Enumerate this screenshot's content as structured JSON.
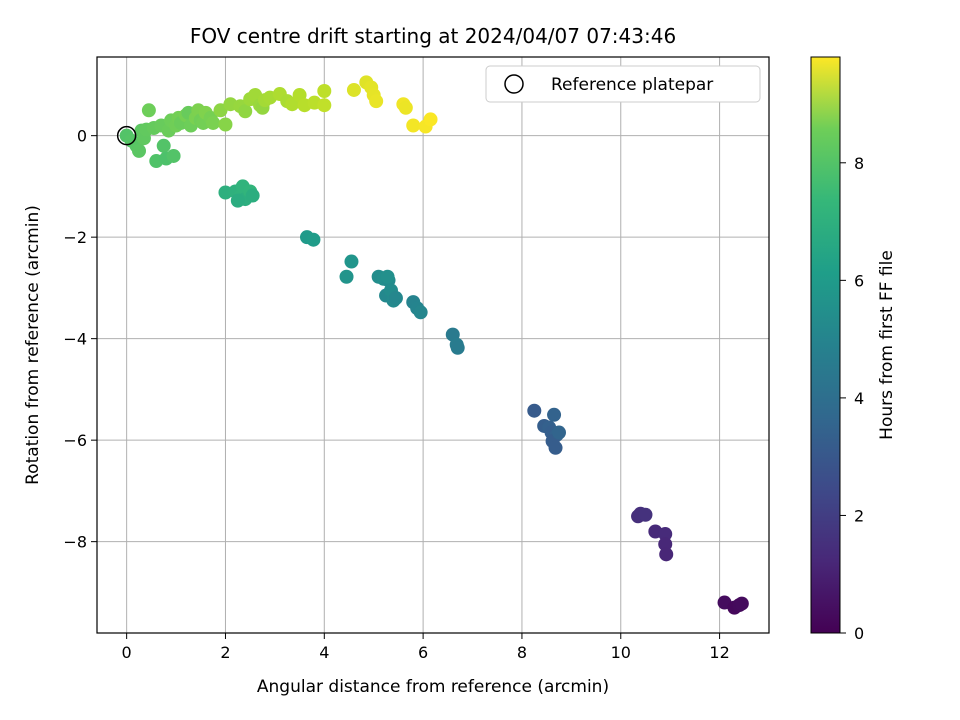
{
  "chart_data": {
    "type": "scatter",
    "title": "FOV centre drift starting at 2024/04/07 07:43:46",
    "xlabel": "Angular distance from reference (arcmin)",
    "ylabel": "Rotation from reference (arcmin)",
    "xlim": [
      -0.6,
      13.0
    ],
    "ylim": [
      -9.8,
      1.55
    ],
    "xticks": [
      0,
      2,
      4,
      6,
      8,
      10,
      12
    ],
    "yticks": [
      -8,
      -6,
      -4,
      -2,
      0
    ],
    "grid": true,
    "legend": {
      "position": "top-right",
      "entries": [
        "Reference platepar"
      ]
    },
    "reference": {
      "x": 0,
      "y": 0
    },
    "colorbar": {
      "label": "Hours from first FF file",
      "min": 0,
      "max": 9.8,
      "ticks": [
        0,
        2,
        4,
        6,
        8
      ],
      "colormap": "viridis"
    },
    "series": [
      {
        "points": [
          [
            12.1,
            -9.2,
            0.3
          ],
          [
            12.3,
            -9.3,
            0.2
          ],
          [
            12.4,
            -9.25,
            0.25
          ],
          [
            12.45,
            -9.22,
            0.28
          ],
          [
            10.35,
            -7.5,
            1.3
          ],
          [
            10.4,
            -7.45,
            1.35
          ],
          [
            10.5,
            -7.47,
            1.4
          ],
          [
            10.7,
            -7.8,
            1.15
          ],
          [
            10.9,
            -7.85,
            1.2
          ],
          [
            10.9,
            -8.05,
            1.1
          ],
          [
            10.92,
            -8.25,
            1.05
          ],
          [
            8.25,
            -5.42,
            2.8
          ],
          [
            8.45,
            -5.72,
            2.9
          ],
          [
            8.55,
            -5.75,
            3.0
          ],
          [
            8.6,
            -5.85,
            2.95
          ],
          [
            8.7,
            -5.9,
            3.05
          ],
          [
            8.62,
            -6.02,
            2.85
          ],
          [
            8.68,
            -6.15,
            2.85
          ],
          [
            8.65,
            -5.5,
            3.1
          ],
          [
            8.75,
            -5.85,
            3.15
          ],
          [
            6.6,
            -3.92,
            4.0
          ],
          [
            6.68,
            -4.12,
            4.1
          ],
          [
            6.7,
            -4.18,
            4.05
          ],
          [
            5.8,
            -3.28,
            4.4
          ],
          [
            5.88,
            -3.4,
            4.45
          ],
          [
            5.95,
            -3.48,
            4.5
          ],
          [
            5.1,
            -2.78,
            4.8
          ],
          [
            5.2,
            -2.82,
            4.85
          ],
          [
            5.3,
            -2.85,
            4.7
          ],
          [
            5.25,
            -3.15,
            4.6
          ],
          [
            5.35,
            -3.05,
            4.75
          ],
          [
            5.4,
            -3.25,
            4.65
          ],
          [
            5.45,
            -3.2,
            4.55
          ],
          [
            5.28,
            -2.78,
            4.9
          ],
          [
            4.45,
            -2.78,
            5.05
          ],
          [
            4.55,
            -2.48,
            5.1
          ],
          [
            3.65,
            -2.0,
            5.3
          ],
          [
            3.78,
            -2.05,
            5.35
          ],
          [
            2.0,
            -1.12,
            6.2
          ],
          [
            2.2,
            -1.1,
            6.25
          ],
          [
            2.3,
            -1.2,
            6.3
          ],
          [
            2.35,
            -1.0,
            6.35
          ],
          [
            2.4,
            -1.25,
            6.15
          ],
          [
            2.5,
            -1.1,
            6.4
          ],
          [
            2.55,
            -1.18,
            6.1
          ],
          [
            2.25,
            -1.28,
            6.05
          ],
          [
            0.0,
            0.0,
            7.1
          ],
          [
            0.1,
            -0.1,
            7.15
          ],
          [
            0.2,
            -0.2,
            7.2
          ],
          [
            0.25,
            -0.3,
            7.25
          ],
          [
            0.3,
            0.1,
            7.3
          ],
          [
            0.35,
            -0.05,
            7.35
          ],
          [
            0.4,
            0.12,
            7.4
          ],
          [
            0.45,
            0.5,
            7.6
          ],
          [
            0.55,
            0.15,
            7.45
          ],
          [
            0.6,
            -0.5,
            7.05
          ],
          [
            0.7,
            0.2,
            7.5
          ],
          [
            0.75,
            -0.2,
            7.1
          ],
          [
            0.8,
            -0.45,
            7.0
          ],
          [
            0.85,
            0.1,
            7.55
          ],
          [
            0.9,
            0.3,
            7.6
          ],
          [
            0.95,
            -0.4,
            7.1
          ],
          [
            1.0,
            0.2,
            7.65
          ],
          [
            1.05,
            0.35,
            7.7
          ],
          [
            1.1,
            0.25,
            7.55
          ],
          [
            1.2,
            0.4,
            7.75
          ],
          [
            1.25,
            0.45,
            7.5
          ],
          [
            1.3,
            0.2,
            7.6
          ],
          [
            1.4,
            0.35,
            7.8
          ],
          [
            1.45,
            0.5,
            7.85
          ],
          [
            1.5,
            0.3,
            7.65
          ],
          [
            1.55,
            0.25,
            7.7
          ],
          [
            1.6,
            0.45,
            7.9
          ],
          [
            1.7,
            0.35,
            7.75
          ],
          [
            1.75,
            0.25,
            7.8
          ],
          [
            1.9,
            0.5,
            8.1
          ],
          [
            2.0,
            0.22,
            8.0
          ],
          [
            2.1,
            0.62,
            8.2
          ],
          [
            2.3,
            0.58,
            8.25
          ],
          [
            2.4,
            0.48,
            8.15
          ],
          [
            2.5,
            0.72,
            8.35
          ],
          [
            2.6,
            0.8,
            8.4
          ],
          [
            2.7,
            0.6,
            8.3
          ],
          [
            2.75,
            0.55,
            8.2
          ],
          [
            2.8,
            0.7,
            8.45
          ],
          [
            2.9,
            0.75,
            8.5
          ],
          [
            3.1,
            0.82,
            8.6
          ],
          [
            3.25,
            0.68,
            8.55
          ],
          [
            3.35,
            0.62,
            8.65
          ],
          [
            3.5,
            0.8,
            8.7
          ],
          [
            3.6,
            0.6,
            8.75
          ],
          [
            3.8,
            0.65,
            8.8
          ],
          [
            4.0,
            0.88,
            8.85
          ],
          [
            4.0,
            0.6,
            8.9
          ],
          [
            4.6,
            0.9,
            9.3
          ],
          [
            4.85,
            1.05,
            9.35
          ],
          [
            4.95,
            0.95,
            9.4
          ],
          [
            5.0,
            0.8,
            9.45
          ],
          [
            5.05,
            0.68,
            9.5
          ],
          [
            5.6,
            0.62,
            9.6
          ],
          [
            5.65,
            0.55,
            9.55
          ],
          [
            5.8,
            0.2,
            9.65
          ],
          [
            6.05,
            0.18,
            9.7
          ],
          [
            6.15,
            0.32,
            9.75
          ]
        ]
      }
    ]
  }
}
